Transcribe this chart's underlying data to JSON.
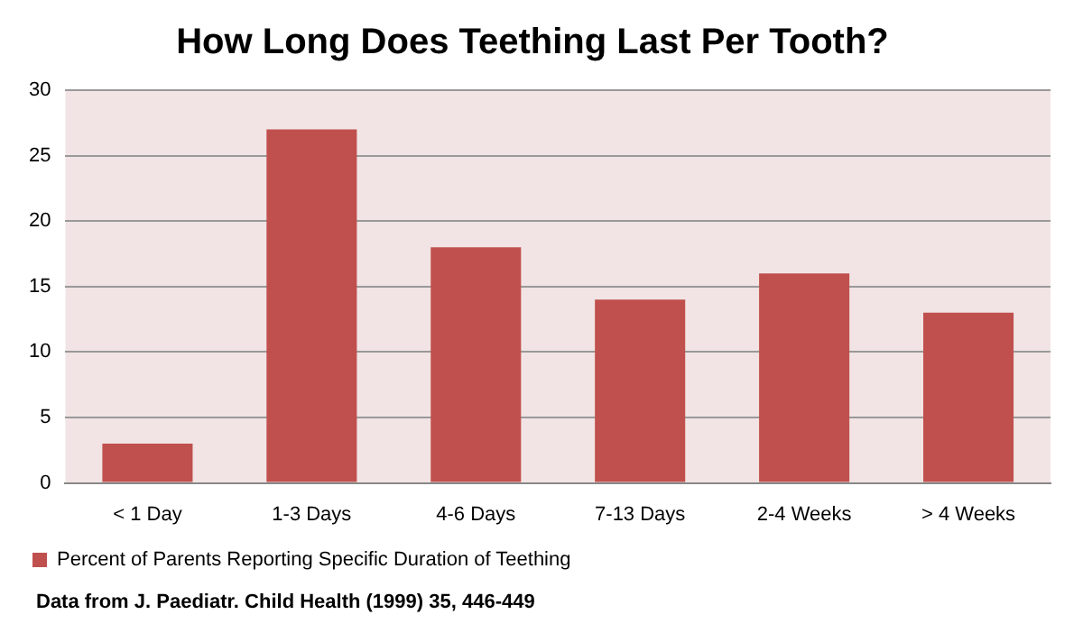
{
  "chart_data": {
    "type": "bar",
    "title": "How Long Does Teething Last Per Tooth?",
    "categories": [
      "< 1 Day",
      "1-3 Days",
      "4-6 Days",
      "7-13 Days",
      "2-4 Weeks",
      "> 4 Weeks"
    ],
    "series": [
      {
        "name": "Percent of Parents Reporting Specific Duration of Teething",
        "color": "#c0504d",
        "values": [
          3,
          27,
          18,
          14,
          16,
          13
        ]
      }
    ],
    "ylim": [
      0,
      30
    ],
    "yticks": [
      0,
      5,
      10,
      15,
      20,
      25,
      30
    ],
    "grid": "y",
    "legend": "bottom",
    "annotations": [
      "Data from J. Paediatr. Child Health (1999) 35, 446-449"
    ]
  }
}
